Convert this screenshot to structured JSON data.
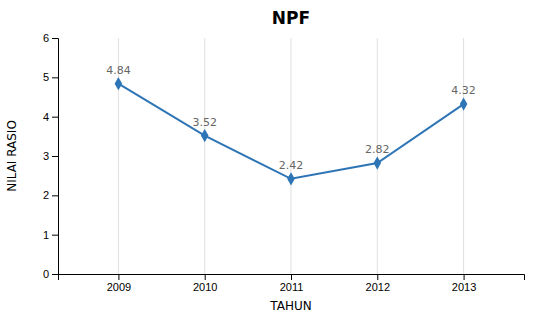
{
  "chart_data": {
    "type": "line",
    "title": "NPF",
    "xlabel": "TAHUN",
    "ylabel": "NILAI RASIO",
    "x": [
      2009,
      2010,
      2011,
      2012,
      2013
    ],
    "values": [
      4.84,
      3.52,
      2.42,
      2.82,
      4.32
    ],
    "color": "#2E75B6",
    "marker": "diamond",
    "xlim": [
      2008.3,
      2013.7
    ],
    "xticks": [
      2009,
      2010,
      2011,
      2012,
      2013
    ],
    "ylim": [
      0,
      6
    ],
    "yticks": [
      0,
      1,
      2,
      3,
      4,
      5,
      6
    ],
    "grid": "x",
    "data_labels": true
  }
}
